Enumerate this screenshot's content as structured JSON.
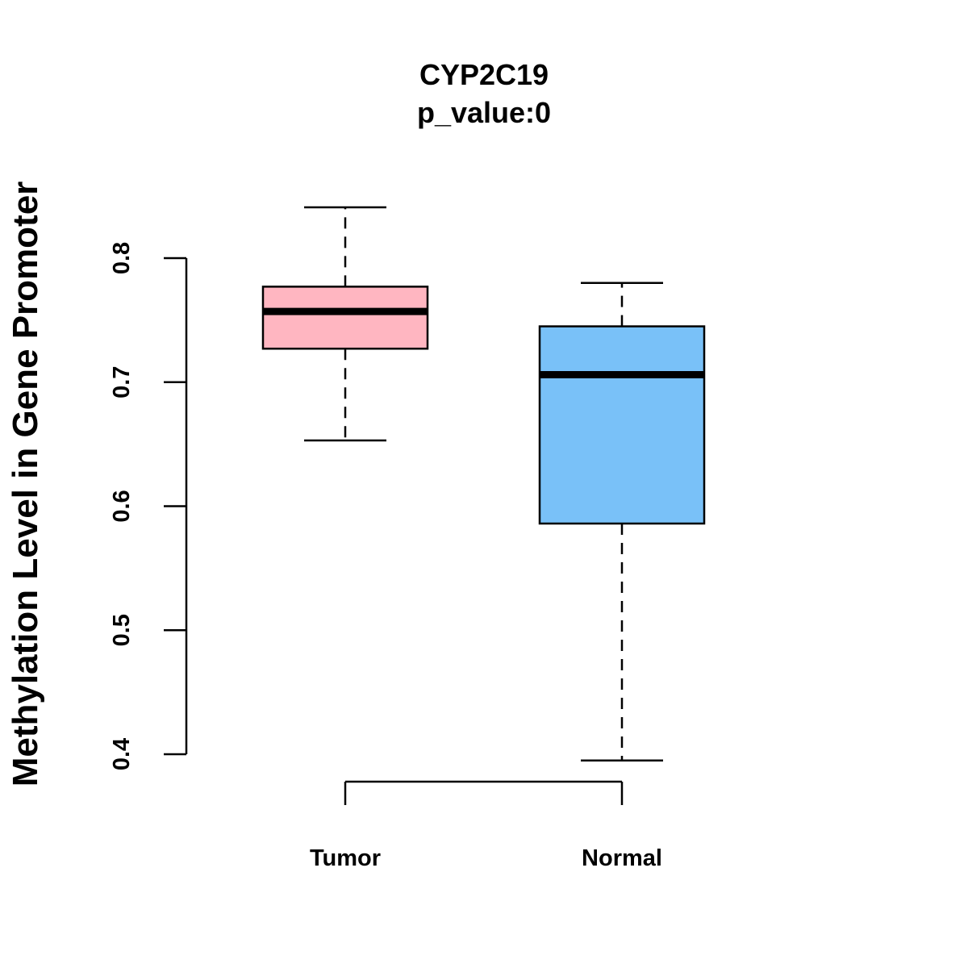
{
  "chart_data": {
    "type": "boxplot",
    "title": "CYP2C19",
    "subtitle": "p_value:0",
    "xlabel": "",
    "ylabel": "Methylation Level in Gene Promoter",
    "ylim": [
      0.4,
      0.8
    ],
    "yticks": [
      0.4,
      0.5,
      0.6,
      0.7,
      0.8
    ],
    "ytick_labels": [
      "0.4",
      "0.5",
      "0.6",
      "0.7",
      "0.8"
    ],
    "grid": false,
    "categories": [
      "Tumor",
      "Normal"
    ],
    "boxes": [
      {
        "category": "Tumor",
        "whisker_low": 0.653,
        "q1": 0.727,
        "median": 0.757,
        "q3": 0.777,
        "whisker_high": 0.841,
        "color": "#FFB6C1"
      },
      {
        "category": "Normal",
        "whisker_low": 0.395,
        "q1": 0.586,
        "median": 0.706,
        "q3": 0.745,
        "whisker_high": 0.78,
        "color": "#79C1F8"
      }
    ],
    "comparison_bracket": [
      "Tumor",
      "Normal"
    ]
  }
}
